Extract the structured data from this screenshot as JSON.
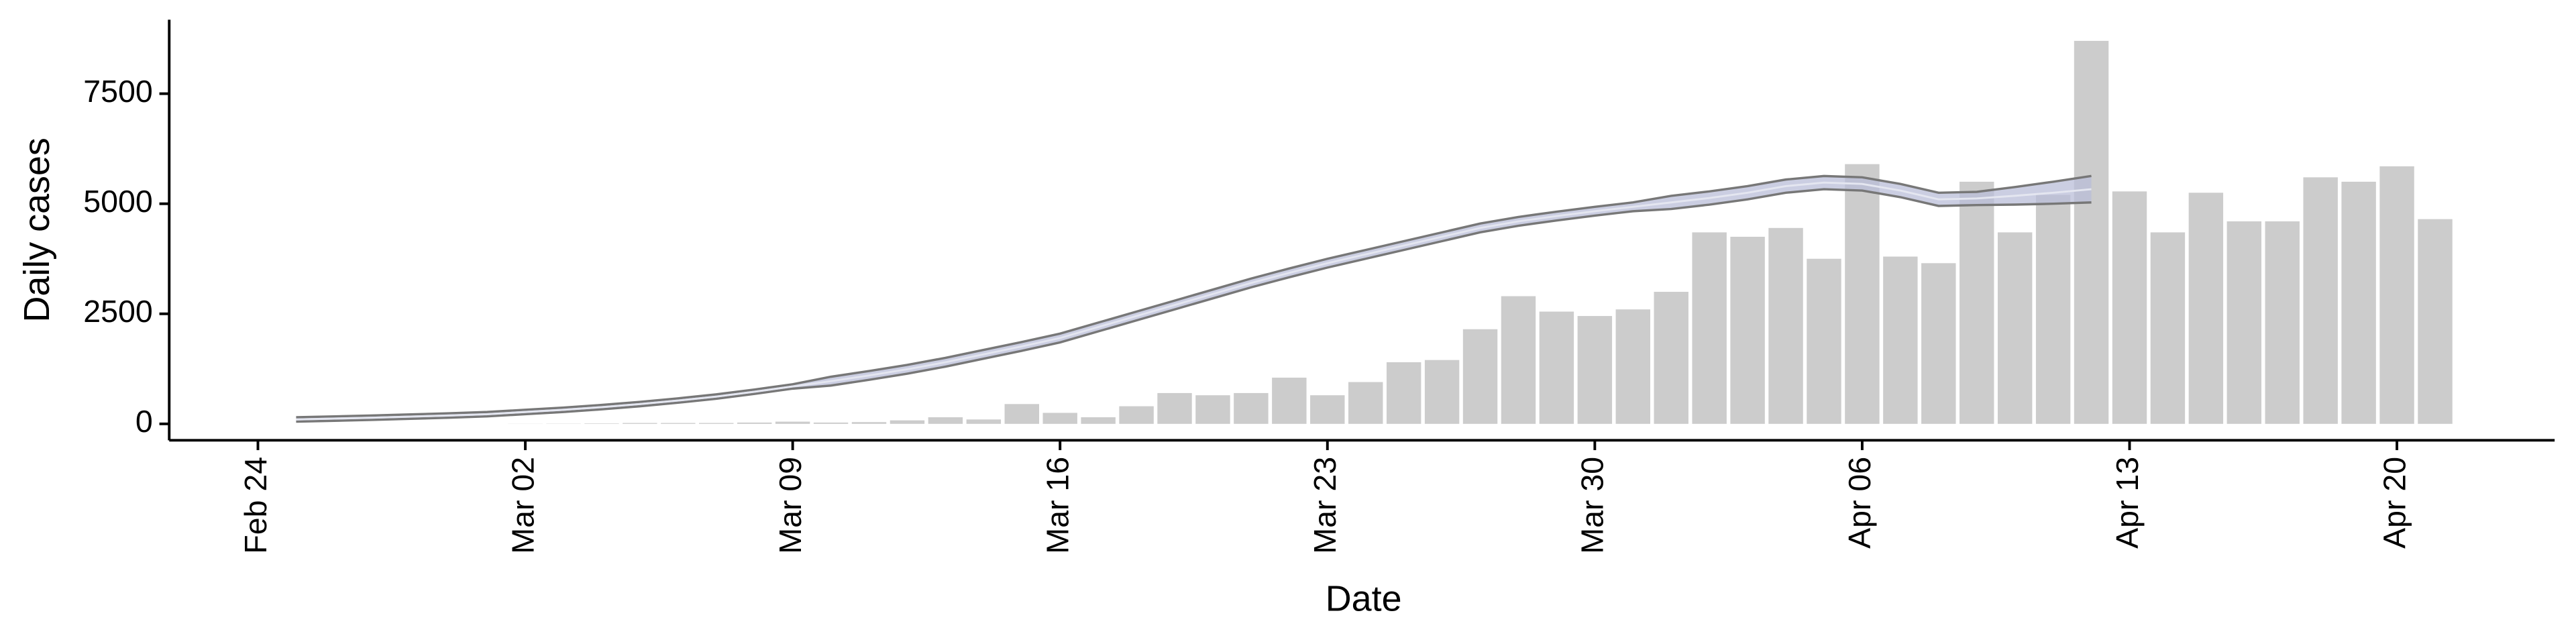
{
  "chart_data": {
    "type": "bar",
    "x_label": "Date",
    "y_label": "Daily cases",
    "categories": [
      null,
      null,
      "Feb 24",
      null,
      null,
      null,
      null,
      null,
      null,
      "Mar 02",
      null,
      null,
      null,
      null,
      null,
      null,
      "Mar 09",
      null,
      null,
      null,
      null,
      null,
      null,
      "Mar 16",
      null,
      null,
      null,
      null,
      null,
      null,
      "Mar 23",
      null,
      null,
      null,
      null,
      null,
      null,
      "Mar 30",
      null,
      null,
      null,
      null,
      null,
      null,
      "Apr 06",
      null,
      null,
      null,
      null,
      null,
      null,
      "Apr 13",
      null,
      null,
      null,
      null,
      null,
      null,
      "Apr 20",
      null,
      null,
      null
    ],
    "values": [
      null,
      null,
      null,
      null,
      null,
      null,
      null,
      null,
      null,
      3,
      5,
      10,
      20,
      20,
      20,
      30,
      50,
      30,
      40,
      80,
      150,
      100,
      450,
      250,
      150,
      400,
      700,
      650,
      700,
      1050,
      650,
      950,
      1400,
      1450,
      2150,
      2900,
      2550,
      2450,
      2600,
      3000,
      4350,
      4250,
      4450,
      3750,
      5900,
      3800,
      3650,
      5500,
      4350,
      5200,
      8700,
      5280,
      4350,
      5250,
      4600,
      4600,
      5600,
      5500,
      5850,
      4650,
      null,
      null
    ],
    "color": "#cccccc",
    "line": {
      "color": "#777777",
      "fill": "#b9bed8",
      "values": [
        null,
        null,
        null,
        100,
        120,
        140,
        165,
        190,
        220,
        270,
        320,
        380,
        450,
        530,
        620,
        730,
        850,
        970,
        1100,
        1240,
        1400,
        1580,
        1760,
        1950,
        2200,
        2450,
        2700,
        2950,
        3200,
        3430,
        3650,
        3850,
        4050,
        4250,
        4450,
        4600,
        4720,
        4830,
        4930,
        5030,
        5130,
        5250,
        5400,
        5480,
        5450,
        5300,
        5100,
        5120,
        5180,
        5250,
        5330,
        null,
        null,
        null,
        null,
        null,
        null,
        null,
        null,
        null,
        null,
        null
      ],
      "lower": [
        null,
        null,
        null,
        50,
        70,
        90,
        115,
        140,
        170,
        220,
        270,
        330,
        400,
        480,
        570,
        680,
        800,
        870,
        1000,
        1140,
        1300,
        1480,
        1660,
        1850,
        2100,
        2350,
        2600,
        2850,
        3100,
        3330,
        3550,
        3750,
        3950,
        4150,
        4350,
        4500,
        4620,
        4730,
        4830,
        4880,
        4980,
        5100,
        5250,
        5330,
        5300,
        5150,
        4950,
        4970,
        4980,
        5000,
        5030,
        null,
        null,
        null,
        null,
        null,
        null,
        null,
        null,
        null,
        null,
        null
      ],
      "upper": [
        null,
        null,
        null,
        150,
        170,
        190,
        215,
        240,
        270,
        320,
        370,
        430,
        500,
        580,
        670,
        780,
        900,
        1070,
        1200,
        1340,
        1500,
        1680,
        1860,
        2050,
        2300,
        2550,
        2800,
        3050,
        3300,
        3530,
        3750,
        3950,
        4150,
        4350,
        4550,
        4700,
        4820,
        4930,
        5030,
        5180,
        5280,
        5400,
        5550,
        5630,
        5600,
        5450,
        5250,
        5270,
        5380,
        5500,
        5630,
        null,
        null,
        null,
        null,
        null,
        null,
        null,
        null,
        null,
        null,
        null
      ]
    },
    "ylim": [
      -373,
      9180
    ],
    "yticks": [
      0,
      2500,
      5000,
      7500
    ],
    "grid": false
  }
}
